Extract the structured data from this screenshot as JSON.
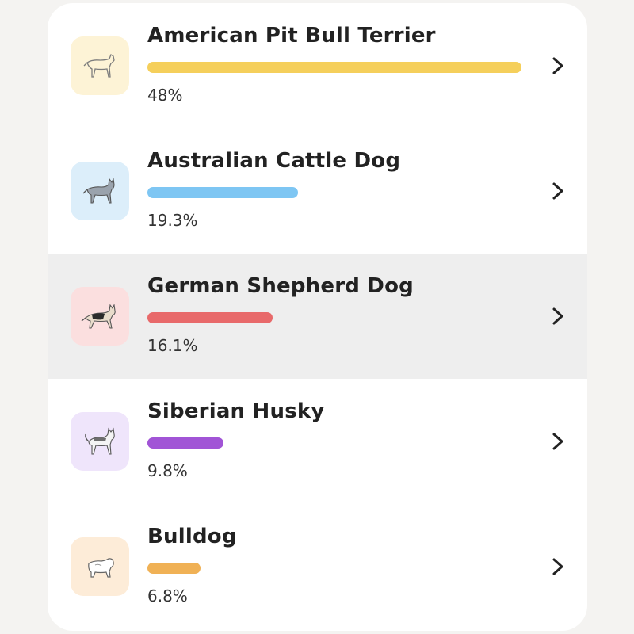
{
  "breeds": [
    {
      "name": "American Pit Bull Terrier",
      "percent_label": "48%",
      "fraction": 0.48,
      "color": "#f5cf5b",
      "bg": "#fdf3d6",
      "icon": "pit-bull-dog-icon"
    },
    {
      "name": "Australian Cattle Dog",
      "percent_label": "19.3%",
      "fraction": 0.193,
      "color": "#7ec6f3",
      "bg": "#dceefa",
      "icon": "cattle-dog-icon"
    },
    {
      "name": "German Shepherd Dog",
      "percent_label": "16.1%",
      "fraction": 0.161,
      "color": "#e8696a",
      "bg": "#fbdfdf",
      "icon": "german-shepherd-icon"
    },
    {
      "name": "Siberian Husky",
      "percent_label": "9.8%",
      "fraction": 0.098,
      "color": "#a154d6",
      "bg": "#efe5fb",
      "icon": "husky-icon"
    },
    {
      "name": "Bulldog",
      "percent_label": "6.8%",
      "fraction": 0.068,
      "color": "#f0b155",
      "bg": "#fdecd8",
      "icon": "bulldog-icon"
    }
  ],
  "highlighted_index": 2
}
